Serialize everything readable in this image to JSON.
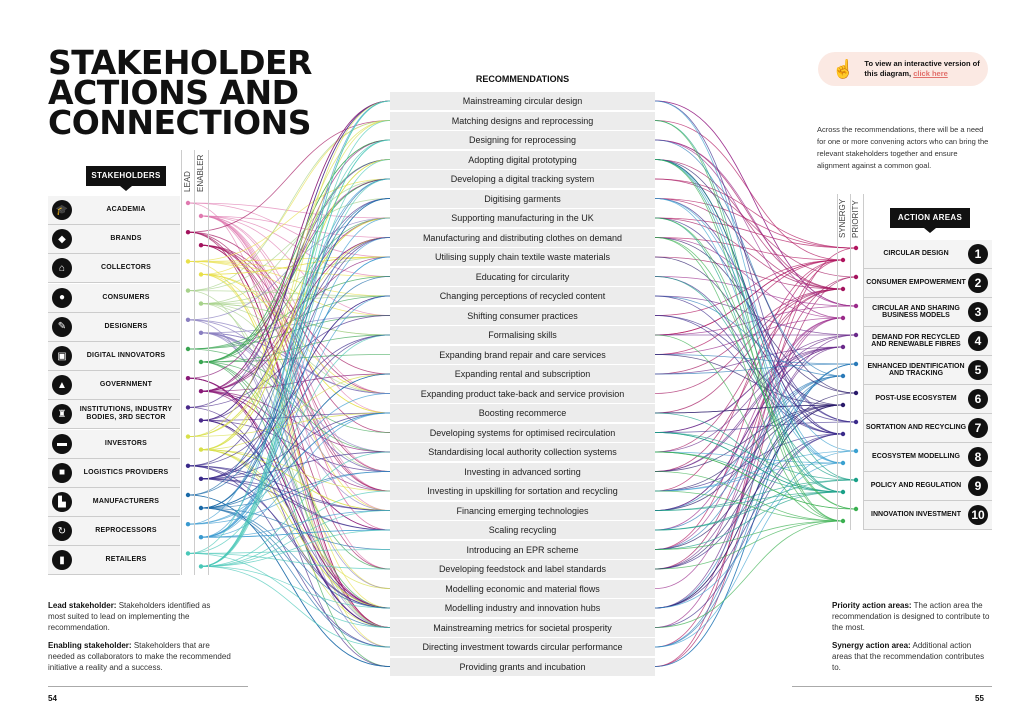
{
  "title": [
    "STAKEHOLDER",
    "ACTIONS AND",
    "CONNECTIONS"
  ],
  "stakeholders_header": "STAKEHOLDERS",
  "lead_label": "LEAD",
  "enabler_label": "ENABLER",
  "stakeholders": [
    {
      "label": "ACADEMIA",
      "icon": "graduation-cap-icon",
      "color": "#e07ab0"
    },
    {
      "label": "BRANDS",
      "icon": "tag-icon",
      "color": "#a3145e"
    },
    {
      "label": "COLLECTORS",
      "icon": "hanger-icon",
      "color": "#e8e04a"
    },
    {
      "label": "CONSUMERS",
      "icon": "people-icon",
      "color": "#a6d18a"
    },
    {
      "label": "DESIGNERS",
      "icon": "pen-icon",
      "color": "#8a7fc0"
    },
    {
      "label": "DIGITAL INNOVATORS",
      "icon": "circuit-icon",
      "color": "#3aa552"
    },
    {
      "label": "GOVERNMENT",
      "icon": "building-icon",
      "color": "#8a1a78"
    },
    {
      "label": "INSTITUTIONS, INDUSTRY BODIES, 3RD SECTOR",
      "icon": "institution-icon",
      "color": "#4a2a8a"
    },
    {
      "label": "INVESTORS",
      "icon": "money-icon",
      "color": "#d8e04a"
    },
    {
      "label": "LOGISTICS PROVIDERS",
      "icon": "truck-icon",
      "color": "#3a2a8a"
    },
    {
      "label": "MANUFACTURERS",
      "icon": "factory-icon",
      "color": "#1a6aa8"
    },
    {
      "label": "REPROCESSORS",
      "icon": "recycle-icon",
      "color": "#3a9ad0"
    },
    {
      "label": "RETAILERS",
      "icon": "shopping-bag-icon",
      "color": "#4ac8b8"
    }
  ],
  "recommendations_header": "RECOMMENDATIONS",
  "recommendations": [
    "Mainstreaming circular design",
    "Matching designs and reprocessing",
    "Designing for reprocessing",
    "Adopting digital prototyping",
    "Developing a digital tracking system",
    "Digitising garments",
    "Supporting manufacturing in the UK",
    "Manufacturing and distributing clothes on demand",
    "Utilising supply chain textile waste materials",
    "Educating for circularity",
    "Changing perceptions of recycled content",
    "Shifting consumer practices",
    "Formalising skills",
    "Expanding brand repair and care services",
    "Expanding rental and subscription",
    "Expanding product take-back and service provision",
    "Boosting recommerce",
    "Developing systems for optimised recirculation",
    "Standardising local authority collection systems",
    "Investing in advanced sorting",
    "Investing in upskilling for sortation and recycling",
    "Financing emerging technologies",
    "Scaling recycling",
    "Introducing an EPR scheme",
    "Developing feedstock and label standards",
    "Modelling economic and material flows",
    "Modelling industry and innovation hubs",
    "Mainstreaming metrics for societal prosperity",
    "Directing investment towards circular performance",
    "Providing grants and incubation"
  ],
  "interactive": {
    "text": "To view an interactive version of this diagram,",
    "link": "click here",
    "icon": "tap-hand-icon",
    "link_color": "#e2706b"
  },
  "convening_note": "Across the recommendations, there will be a need for one or more convening actors who can bring the relevant stakeholders together and ensure alignment against a common goal.",
  "synergy_label": "SYNERGY",
  "priority_label": "PRIORITY",
  "action_areas_header": "ACTION AREAS",
  "action_areas": [
    {
      "num": "1",
      "label": "CIRCULAR DESIGN",
      "color": "#b0145e"
    },
    {
      "num": "2",
      "label": "CONSUMER EMPOWERMENT",
      "color": "#a3145e"
    },
    {
      "num": "3",
      "label": "CIRCULAR AND SHARING BUSINESS MODELS",
      "color": "#9a2a8a"
    },
    {
      "num": "4",
      "label": "DEMAND FOR RECYCLED AND RENEWABLE FIBRES",
      "color": "#6a2a8a"
    },
    {
      "num": "5",
      "label": "ENHANCED IDENTIFICATION AND TRACKING",
      "color": "#2a7ab8"
    },
    {
      "num": "6",
      "label": "POST-USE ECOSYSTEM",
      "color": "#2a1a6a"
    },
    {
      "num": "7",
      "label": "SORTATION AND RECYCLING",
      "color": "#3a2a8a"
    },
    {
      "num": "8",
      "label": "ECOSYSTEM MODELLING",
      "color": "#3aa0d0"
    },
    {
      "num": "9",
      "label": "POLICY AND REGULATION",
      "color": "#1aa088"
    },
    {
      "num": "10",
      "label": "INNOVATION INVESTMENT",
      "color": "#3ab050"
    }
  ],
  "legend_left": {
    "lead_term": "Lead stakeholder:",
    "lead_def": "Stakeholders identified as most suited to lead on implementing the recommendation.",
    "enabling_term": "Enabling stakeholder:",
    "enabling_def": "Stakeholders that are needed as collaborators to make the recommended initiative a reality and a success."
  },
  "legend_right": {
    "priority_term": "Priority action areas:",
    "priority_def": "The action area the recommendation is designed to contribute to the most.",
    "synergy_term": "Synergy action area:",
    "synergy_def": "Additional action areas that the recommendation contributes to."
  },
  "page_left": "54",
  "page_right": "55"
}
